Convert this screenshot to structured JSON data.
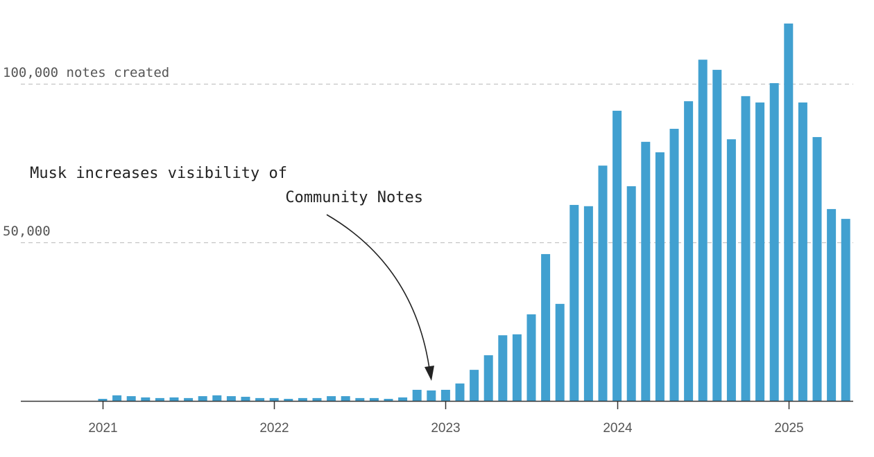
{
  "chart_data": {
    "type": "bar",
    "title": "",
    "xlabel": "",
    "ylabel": "",
    "ylim": [
      0,
      120000
    ],
    "grid": true,
    "y_gridlines": [
      {
        "value": 100000,
        "label": "100,000 notes created"
      },
      {
        "value": 50000,
        "label": "50,000"
      }
    ],
    "x_ticks": [
      {
        "label": "2021",
        "index": 0
      },
      {
        "label": "2022",
        "index": 12
      },
      {
        "label": "2023",
        "index": 24
      },
      {
        "label": "2024",
        "index": 36
      },
      {
        "label": "2025",
        "index": 48
      }
    ],
    "categories": [
      "2021-01",
      "2021-02",
      "2021-03",
      "2021-04",
      "2021-05",
      "2021-06",
      "2021-07",
      "2021-08",
      "2021-09",
      "2021-10",
      "2021-11",
      "2021-12",
      "2022-01",
      "2022-02",
      "2022-03",
      "2022-04",
      "2022-05",
      "2022-06",
      "2022-07",
      "2022-08",
      "2022-09",
      "2022-10",
      "2022-11",
      "2022-12",
      "2023-01",
      "2023-02",
      "2023-03",
      "2023-04",
      "2023-05",
      "2023-06",
      "2023-07",
      "2023-08",
      "2023-09",
      "2023-10",
      "2023-11",
      "2023-12",
      "2024-01",
      "2024-02",
      "2024-03",
      "2024-04",
      "2024-05",
      "2024-06",
      "2024-07",
      "2024-08",
      "2024-09",
      "2024-10",
      "2024-11",
      "2024-12",
      "2025-01",
      "2025-02",
      "2025-03",
      "2025-04",
      "2025-05"
    ],
    "values": [
      650,
      1750,
      1500,
      1100,
      900,
      1100,
      900,
      1500,
      1750,
      1500,
      1300,
      900,
      900,
      650,
      900,
      900,
      1500,
      1500,
      900,
      900,
      650,
      1100,
      3500,
      3300,
      3500,
      5500,
      9800,
      14400,
      20700,
      21000,
      27300,
      46300,
      30600,
      61800,
      61400,
      74200,
      91500,
      67700,
      81700,
      78400,
      85800,
      94500,
      107600,
      104400,
      82500,
      96100,
      94100,
      100200,
      119000,
      94100,
      83200,
      60500,
      57400
    ],
    "bar_color": "#41a0d0",
    "annotation": {
      "text_lines": [
        "Musk increases visibility of",
        "Community Notes"
      ],
      "points_to": "2022-12"
    }
  }
}
